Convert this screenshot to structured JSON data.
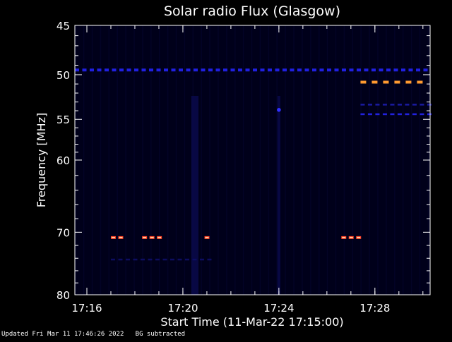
{
  "chart_data": {
    "type": "heatmap",
    "title": "Solar radio Flux (Glasgow)",
    "xlabel": "Start Time (11-Mar-22 17:15:00)",
    "ylabel": "Frequency [MHz]",
    "x_unit": "minutes after 17:00 UT",
    "xlim": [
      15.5,
      30.3
    ],
    "ylim": [
      80,
      45
    ],
    "y_scale": "log",
    "x_ticks": [
      {
        "value": 16,
        "label": "17:16"
      },
      {
        "value": 20,
        "label": "17:20"
      },
      {
        "value": 24,
        "label": "17:24"
      },
      {
        "value": 28,
        "label": "17:28"
      }
    ],
    "y_ticks": [
      {
        "value": 45,
        "label": "45"
      },
      {
        "value": 50,
        "label": "50"
      },
      {
        "value": 55,
        "label": "55"
      },
      {
        "value": 60,
        "label": "60"
      },
      {
        "value": 70,
        "label": "70"
      },
      {
        "value": 80,
        "label": "80"
      }
    ],
    "background_color": "#00001a",
    "features": [
      {
        "freq": 49.5,
        "t_start": 15.5,
        "t_end": 30.3,
        "pattern": "dashed",
        "color": "#2020e0",
        "intensity": "low"
      },
      {
        "freq": 50.8,
        "t_start": 27.4,
        "t_end": 30.2,
        "pattern": "dashed",
        "color": "#ff9a30",
        "intensity": "high"
      },
      {
        "freq": 53.3,
        "t_start": 27.4,
        "t_end": 30.2,
        "pattern": "dashed",
        "color": "#1a1aa0",
        "intensity": "low"
      },
      {
        "freq": 54.4,
        "t_start": 27.4,
        "t_end": 30.2,
        "pattern": "dashed",
        "color": "#2222e0",
        "intensity": "low"
      },
      {
        "freq": 70.8,
        "t_start": 17.0,
        "t_end": 17.6,
        "pattern": "burst",
        "color": "#ff3a20",
        "intensity": "high"
      },
      {
        "freq": 70.8,
        "t_start": 18.3,
        "t_end": 19.2,
        "pattern": "burst",
        "color": "#ff3a20",
        "intensity": "high"
      },
      {
        "freq": 70.8,
        "t_start": 20.9,
        "t_end": 21.2,
        "pattern": "burst",
        "color": "#ff3a20",
        "intensity": "high"
      },
      {
        "freq": 70.8,
        "t_start": 26.6,
        "t_end": 27.5,
        "pattern": "burst",
        "color": "#ff3a20",
        "intensity": "high"
      },
      {
        "freq": 74.2,
        "t_start": 17.0,
        "t_end": 21.2,
        "pattern": "dashed",
        "color": "#0d0d60",
        "intensity": "low"
      },
      {
        "freq": 53.9,
        "t_start": 24.0,
        "t_end": 24.0,
        "pattern": "dot",
        "color": "#3030ff",
        "intensity": "medium"
      }
    ],
    "grid": false,
    "legend": "none"
  },
  "footer": {
    "updated": "Updated Fri Mar 11 17:46:26 2022",
    "note": "BG subtracted"
  }
}
